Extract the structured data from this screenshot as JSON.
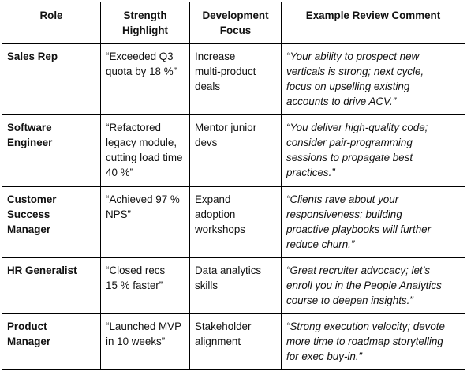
{
  "table": {
    "headers": [
      "Role",
      "Strength\nHighlight",
      "Development\nFocus",
      "Example Review Comment"
    ],
    "rows": [
      {
        "role": "Sales Rep",
        "strength": "“Exceeded Q3\nquota by 18 %”",
        "focus": "Increase\nmulti-product\ndeals",
        "comment": "“Your ability to prospect new\nverticals is strong; next cycle,\nfocus on upselling existing\naccounts to drive ACV.”"
      },
      {
        "role": "Software\nEngineer",
        "strength": "“Refactored\nlegacy module,\ncutting load time\n40 %”",
        "focus": "Mentor junior\ndevs",
        "comment": "“You deliver high-quality code;\nconsider pair-programming\nsessions to propagate best\npractices.”"
      },
      {
        "role": "Customer\nSuccess\nManager",
        "strength": "“Achieved 97 %\nNPS”",
        "focus": "Expand\nadoption\nworkshops",
        "comment": "“Clients rave about your\nresponsiveness; building\nproactive playbooks will further\nreduce churn.”"
      },
      {
        "role": "HR Generalist",
        "strength": "“Closed recs\n15 % faster”",
        "focus": "Data analytics\nskills",
        "comment": "“Great recruiter advocacy; let’s\nenroll you in the People Analytics\ncourse to deepen insights.”"
      },
      {
        "role": "Product\nManager",
        "strength": "“Launched MVP\nin 10 weeks”",
        "focus": "Stakeholder\nalignment",
        "comment": "“Strong execution velocity; devote\nmore time to roadmap storytelling\nfor exec buy-in.”"
      }
    ]
  }
}
